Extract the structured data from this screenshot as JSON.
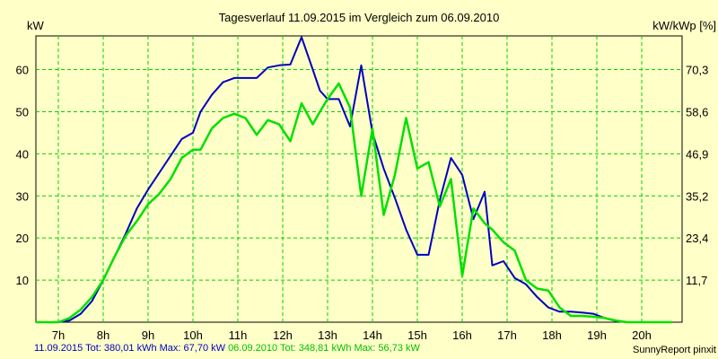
{
  "chart_data": {
    "type": "line",
    "title": "Tagesverlauf 11.09.2015 im Vergleich zum 06.09.2010",
    "ylabel_left": "kW",
    "ylabel_right": "kW/kWp [%]",
    "ylim": [
      0,
      68
    ],
    "xlim": [
      6.5,
      20.9
    ],
    "x_ticks": [
      "7h",
      "8h",
      "9h",
      "10h",
      "11h",
      "12h",
      "13h",
      "14h",
      "15h",
      "16h",
      "17h",
      "18h",
      "19h",
      "20h"
    ],
    "y_ticks_left": [
      "10",
      "20",
      "30",
      "40",
      "50",
      "60"
    ],
    "y_ticks_right": [
      "11,7",
      "23,4",
      "35,2",
      "46,9",
      "58,6",
      "70,3"
    ],
    "grid": true,
    "series": [
      {
        "name": "11.09.2015",
        "color": "#0000c0",
        "x": [
          6.5,
          7.0,
          7.25,
          7.5,
          7.75,
          8.0,
          8.25,
          8.5,
          8.75,
          9.0,
          9.25,
          9.5,
          9.75,
          10.0,
          10.17,
          10.42,
          10.67,
          10.92,
          11.17,
          11.42,
          11.67,
          11.92,
          12.17,
          12.42,
          12.67,
          12.83,
          13.0,
          13.25,
          13.5,
          13.75,
          14.0,
          14.25,
          14.5,
          14.75,
          15.0,
          15.25,
          15.5,
          15.75,
          16.0,
          16.25,
          16.5,
          16.67,
          16.92,
          17.17,
          17.42,
          17.67,
          17.92,
          18.17,
          18.42,
          18.67,
          18.92,
          19.17,
          19.42,
          19.67,
          19.92,
          20.17,
          20.42,
          20.67
        ],
        "values": [
          0,
          0,
          0.4,
          2,
          5,
          10,
          15.5,
          21,
          27,
          31.5,
          35.5,
          39.5,
          43.5,
          45,
          50,
          54,
          57,
          58,
          58,
          58,
          60.5,
          61,
          61.2,
          67.7,
          60,
          55,
          53,
          53,
          46.5,
          61,
          45,
          36.5,
          29.5,
          22,
          16,
          16,
          29,
          39,
          35,
          24.5,
          31,
          13.5,
          14.5,
          10.5,
          9,
          6,
          3.5,
          2.5,
          2.5,
          2.3,
          2,
          1,
          0.3,
          0,
          0,
          0,
          0,
          0
        ]
      },
      {
        "name": "06.09.2010",
        "color": "#00e000",
        "x": [
          6.5,
          7.0,
          7.25,
          7.5,
          7.75,
          8.0,
          8.25,
          8.5,
          8.75,
          9.0,
          9.25,
          9.5,
          9.75,
          10.0,
          10.17,
          10.42,
          10.67,
          10.92,
          11.17,
          11.42,
          11.67,
          11.92,
          12.17,
          12.42,
          12.67,
          12.83,
          13.0,
          13.25,
          13.5,
          13.75,
          14.0,
          14.25,
          14.5,
          14.75,
          15.0,
          15.25,
          15.5,
          15.75,
          16.0,
          16.25,
          16.5,
          16.67,
          16.92,
          17.17,
          17.42,
          17.67,
          17.92,
          18.17,
          18.42,
          18.67,
          18.92,
          19.17,
          19.42,
          19.67,
          19.92,
          20.17,
          20.42,
          20.67
        ],
        "values": [
          0,
          0,
          1,
          3,
          6,
          10,
          15.5,
          20.5,
          24,
          28,
          30.5,
          34,
          39,
          41,
          41,
          46,
          48.5,
          49.5,
          48.5,
          44.5,
          48,
          47,
          43,
          52,
          47,
          50,
          53,
          56.7,
          51,
          30,
          46,
          25.5,
          35,
          48.5,
          36.5,
          38,
          27.5,
          34,
          11,
          27,
          23.5,
          22,
          19,
          17,
          10,
          8,
          7.5,
          3.5,
          1.5,
          1.5,
          1.3,
          1,
          0.4,
          0,
          0,
          0,
          0,
          0
        ]
      }
    ],
    "footer": {
      "s1_label": "11.09.2015 Tot: 380,01 kWh Max: 67,70 kW",
      "s2_label": "06.09.2010 Tot: 348,81 kWh Max: 56,73 kW",
      "brand": "SunnyReport pinxit"
    }
  }
}
